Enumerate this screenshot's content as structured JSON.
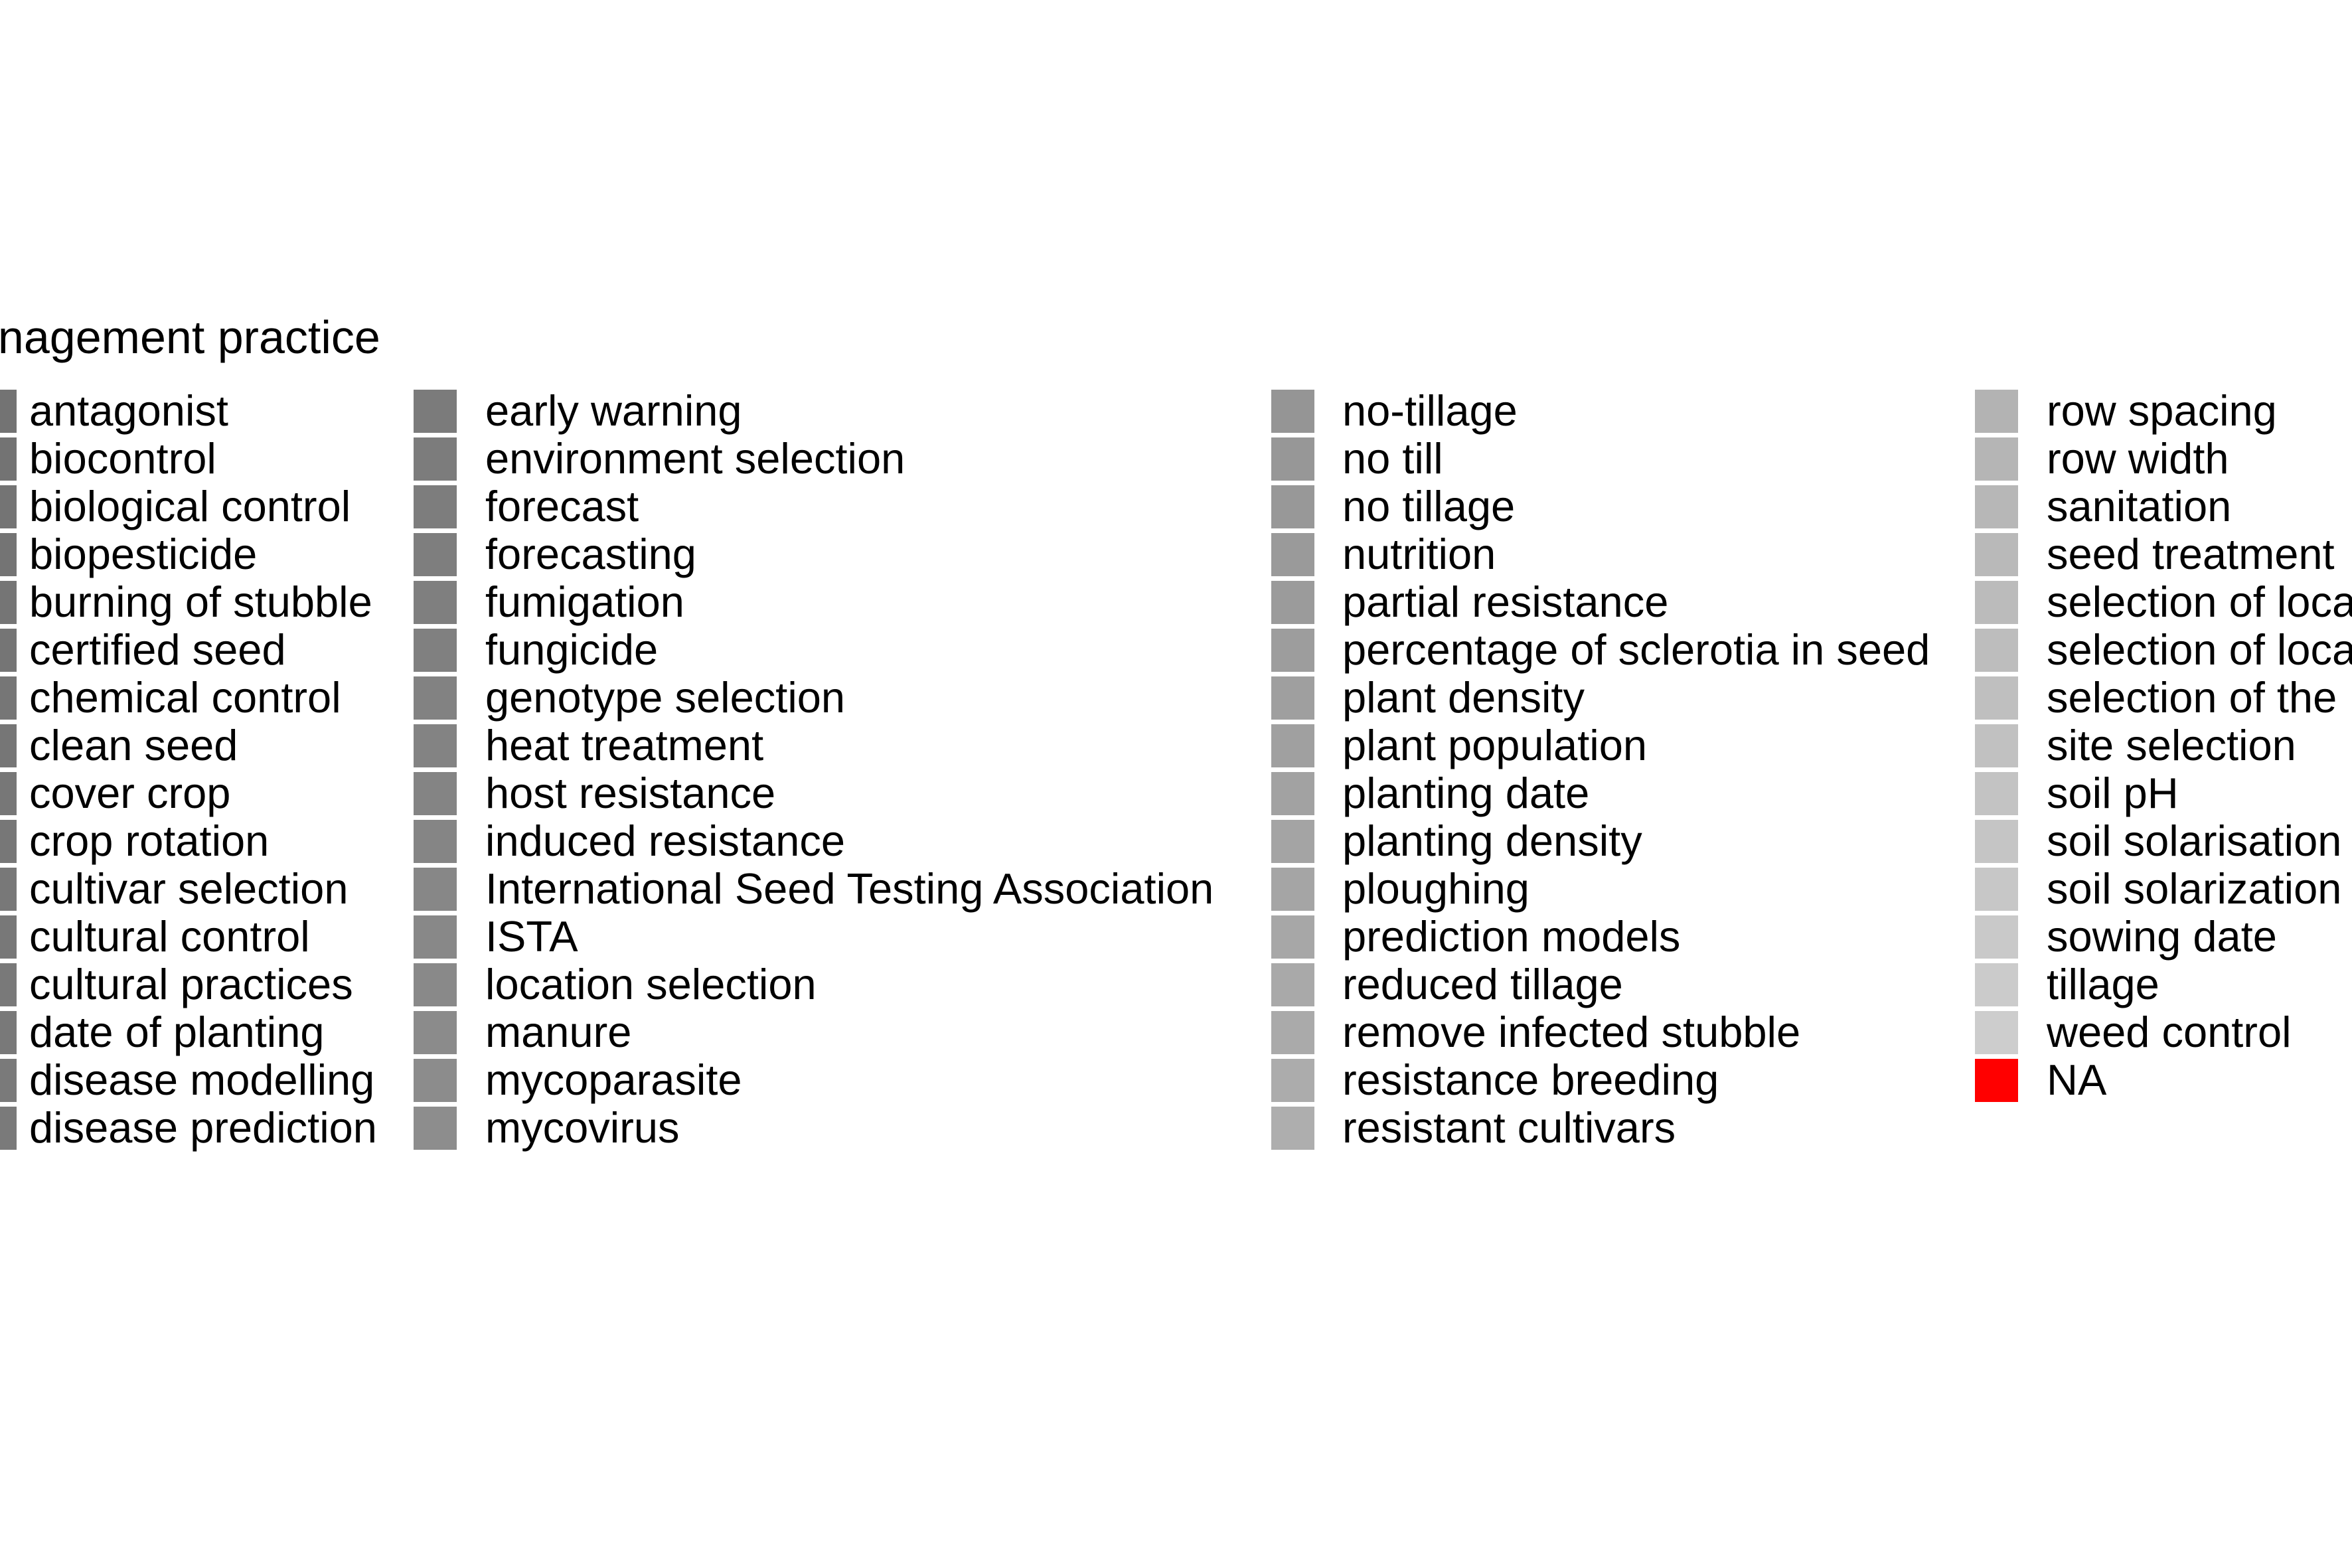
{
  "chart_data": {
    "type": "legend",
    "legend_title": "anagement practice",
    "columns": [
      {
        "items": [
          {
            "label": "antagonist",
            "color": "#737373"
          },
          {
            "label": "biocontrol",
            "color": "#737373"
          },
          {
            "label": "biological control",
            "color": "#747474"
          },
          {
            "label": "biopesticide",
            "color": "#747474"
          },
          {
            "label": "burning of stubble",
            "color": "#757575"
          },
          {
            "label": "certified seed",
            "color": "#757575"
          },
          {
            "label": "chemical control",
            "color": "#767676"
          },
          {
            "label": "clean seed",
            "color": "#767676"
          },
          {
            "label": "cover crop",
            "color": "#777777"
          },
          {
            "label": "crop rotation",
            "color": "#777777"
          },
          {
            "label": "cultivar selection",
            "color": "#787878"
          },
          {
            "label": "cultural control",
            "color": "#787878"
          },
          {
            "label": "cultural practices",
            "color": "#797979"
          },
          {
            "label": "date of planting",
            "color": "#797979"
          },
          {
            "label": "disease modelling",
            "color": "#7a7a7a"
          },
          {
            "label": "disease prediction",
            "color": "#7a7a7a"
          }
        ]
      },
      {
        "items": [
          {
            "label": "early warning",
            "color": "#7b7b7b"
          },
          {
            "label": "environment selection",
            "color": "#7c7c7c"
          },
          {
            "label": "forecast",
            "color": "#7d7d7d"
          },
          {
            "label": "forecasting",
            "color": "#7e7e7e"
          },
          {
            "label": "fumigation",
            "color": "#7f7f7f"
          },
          {
            "label": "fungicide",
            "color": "#808080"
          },
          {
            "label": "genotype selection",
            "color": "#828282"
          },
          {
            "label": "heat treatment",
            "color": "#838383"
          },
          {
            "label": "host resistance",
            "color": "#848484"
          },
          {
            "label": "induced resistance",
            "color": "#858585"
          },
          {
            "label": "International Seed Testing Association",
            "color": "#878787"
          },
          {
            "label": "ISTA",
            "color": "#888888"
          },
          {
            "label": "location selection",
            "color": "#898989"
          },
          {
            "label": "manure",
            "color": "#8b8b8b"
          },
          {
            "label": "mycoparasite",
            "color": "#8c8c8c"
          },
          {
            "label": "mycovirus",
            "color": "#8d8d8d"
          }
        ]
      },
      {
        "items": [
          {
            "label": "no-tillage",
            "color": "#959595"
          },
          {
            "label": "no till",
            "color": "#979797"
          },
          {
            "label": "no tillage",
            "color": "#989898"
          },
          {
            "label": "nutrition",
            "color": "#9a9a9a"
          },
          {
            "label": "partial resistance",
            "color": "#9b9b9b"
          },
          {
            "label": "percentage of sclerotia in seed",
            "color": "#9d9d9d"
          },
          {
            "label": "plant density",
            "color": "#9f9f9f"
          },
          {
            "label": "plant population",
            "color": "#a0a0a0"
          },
          {
            "label": "planting date",
            "color": "#a2a2a2"
          },
          {
            "label": "planting density",
            "color": "#a4a4a4"
          },
          {
            "label": "ploughing",
            "color": "#a5a5a5"
          },
          {
            "label": "prediction models",
            "color": "#a7a7a7"
          },
          {
            "label": "reduced tillage",
            "color": "#a9a9a9"
          },
          {
            "label": "remove infected stubble",
            "color": "#aaaaaa"
          },
          {
            "label": "resistance breeding",
            "color": "#acacac"
          },
          {
            "label": "resistant cultivars",
            "color": "#aeaeae"
          }
        ]
      },
      {
        "items": [
          {
            "label": "row spacing",
            "color": "#b3b3b3"
          },
          {
            "label": "row width",
            "color": "#b5b5b5"
          },
          {
            "label": "sanitation",
            "color": "#b7b7b7"
          },
          {
            "label": "seed treatment",
            "color": "#b9b9b9"
          },
          {
            "label": "selection of loca",
            "color": "#bbbbbb"
          },
          {
            "label": "selection of loca",
            "color": "#bdbdbd"
          },
          {
            "label": "selection of the",
            "color": "#bfbfbf"
          },
          {
            "label": "site selection",
            "color": "#c1c1c1"
          },
          {
            "label": "soil pH",
            "color": "#c3c3c3"
          },
          {
            "label": "soil solarisation",
            "color": "#c5c5c5"
          },
          {
            "label": "soil solarization",
            "color": "#c7c7c7"
          },
          {
            "label": "sowing date",
            "color": "#c9c9c9"
          },
          {
            "label": "tillage",
            "color": "#cbcbcb"
          },
          {
            "label": "weed control",
            "color": "#cdcdcd"
          },
          {
            "label": "NA",
            "color": "#ff0000"
          }
        ]
      }
    ]
  }
}
